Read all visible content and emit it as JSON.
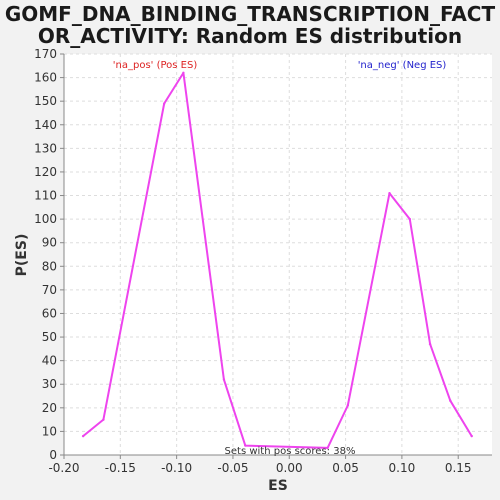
{
  "chart_data": {
    "type": "line",
    "title_line1": "GOMF_DNA_BINDING_TRANSCRIPTION_FACT",
    "title_line2": "OR_ACTIVITY: Random ES distribution",
    "xlabel": "ES",
    "ylabel": "P(ES)",
    "xlim": [
      -0.2,
      0.18
    ],
    "ylim": [
      0,
      170
    ],
    "xticks": [
      -0.2,
      -0.15,
      -0.1,
      -0.05,
      0.0,
      0.05,
      0.1,
      0.15
    ],
    "xtick_labels": [
      "-0.20",
      "-0.15",
      "-0.10",
      "-0.05",
      "0.00",
      "0.05",
      "0.10",
      "0.15"
    ],
    "yticks": [
      0,
      10,
      20,
      30,
      40,
      50,
      60,
      70,
      80,
      90,
      100,
      110,
      120,
      130,
      140,
      150,
      160,
      170
    ],
    "grid": true,
    "line_color": "#ee44ee",
    "x": [
      -0.183,
      -0.165,
      -0.111,
      -0.094,
      -0.058,
      -0.039,
      0.034,
      0.052,
      0.089,
      0.107,
      0.125,
      0.143,
      0.162
    ],
    "y": [
      8,
      15,
      149,
      162,
      32,
      4,
      3,
      21,
      111,
      100,
      47,
      23,
      8
    ],
    "annotations": {
      "pos_label": "'na_pos' (Pos ES)",
      "pos_color": "#dd2222",
      "neg_label": "'na_neg' (Neg ES)",
      "neg_color": "#2222cc",
      "summary": "Sets with pos scores: 38%"
    }
  }
}
